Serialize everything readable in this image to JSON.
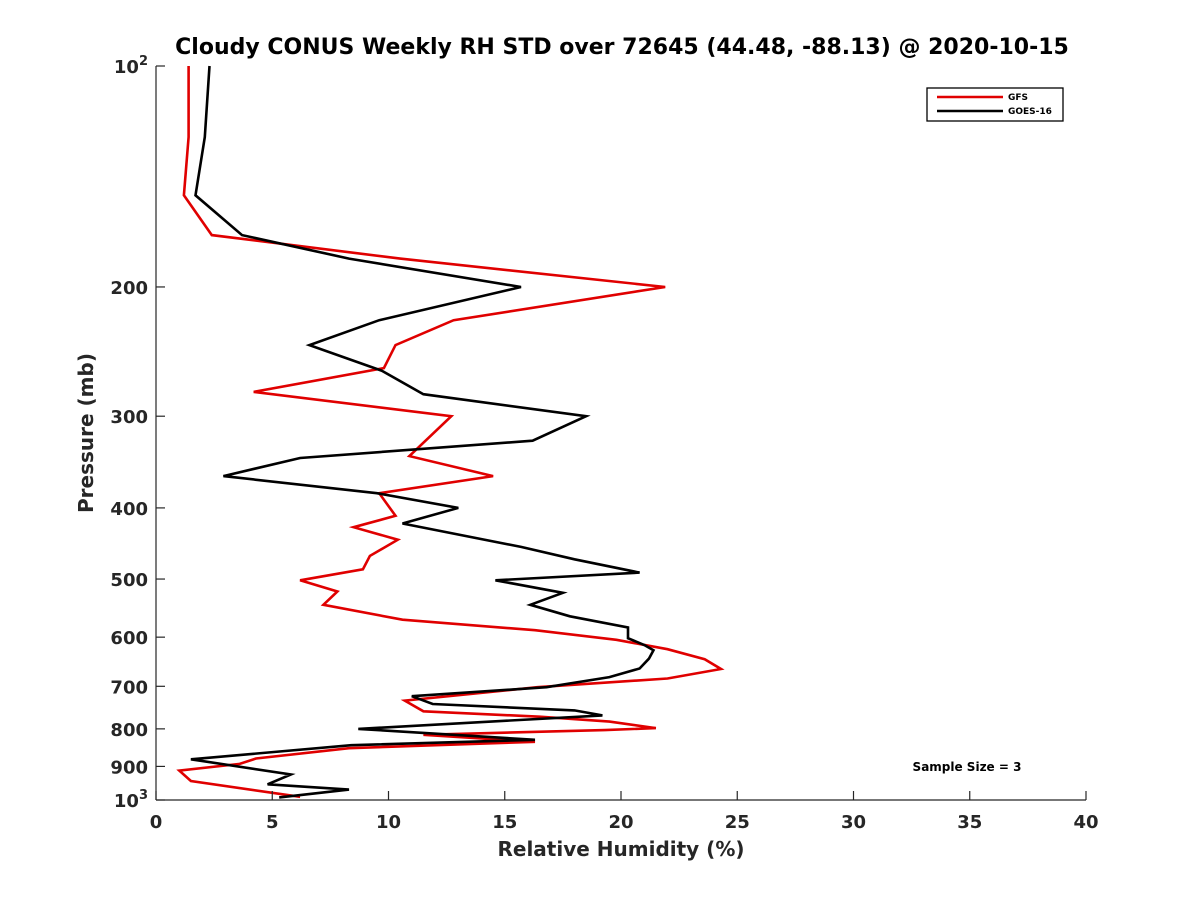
{
  "chart_data": {
    "type": "line",
    "title": "Cloudy CONUS Weekly RH STD over 72645 (44.48, -88.13) @ 2020-10-15",
    "xlabel": "Relative Humidity (%)",
    "ylabel": "Pressure (mb)",
    "xlim": [
      0,
      40
    ],
    "ylim": [
      100,
      1000
    ],
    "y_scale": "log",
    "y_reversed": true,
    "grid": false,
    "legend_position": "top-right",
    "x_ticks": [
      0,
      5,
      10,
      15,
      20,
      25,
      30,
      35,
      40
    ],
    "x_tick_labels": [
      "0",
      "5",
      "10",
      "15",
      "20",
      "25",
      "30",
      "35",
      "40"
    ],
    "y_ticks": [
      {
        "value": 100,
        "base": "10",
        "exp": "2"
      },
      {
        "value": 200,
        "label": "200"
      },
      {
        "value": 300,
        "label": "300"
      },
      {
        "value": 400,
        "label": "400"
      },
      {
        "value": 500,
        "label": "500"
      },
      {
        "value": 600,
        "label": "600"
      },
      {
        "value": 700,
        "label": "700"
      },
      {
        "value": 800,
        "label": "800"
      },
      {
        "value": 900,
        "label": "900"
      },
      {
        "value": 1000,
        "base": "10",
        "exp": "3"
      }
    ],
    "annotation": "Sample Size = 3",
    "series": [
      {
        "name": "GFS",
        "color": "#e00000",
        "points": [
          [
            1.4,
            100
          ],
          [
            1.4,
            125
          ],
          [
            1.2,
            150
          ],
          [
            2.4,
            170
          ],
          [
            10.5,
            183
          ],
          [
            21.9,
            200
          ],
          [
            12.8,
            222
          ],
          [
            10.3,
            240
          ],
          [
            9.8,
            258
          ],
          [
            4.2,
            278
          ],
          [
            12.7,
            300
          ],
          [
            10.9,
            340
          ],
          [
            14.5,
            362
          ],
          [
            9.6,
            382
          ],
          [
            10.3,
            410
          ],
          [
            8.5,
            425
          ],
          [
            10.4,
            442
          ],
          [
            9.2,
            465
          ],
          [
            8.9,
            485
          ],
          [
            6.2,
            502
          ],
          [
            7.8,
            520
          ],
          [
            7.2,
            542
          ],
          [
            10.6,
            568
          ],
          [
            16.3,
            587
          ],
          [
            19.8,
            605
          ],
          [
            22.0,
            623
          ],
          [
            23.6,
            643
          ],
          [
            24.3,
            663
          ],
          [
            22.0,
            683
          ],
          [
            16.4,
            702
          ],
          [
            10.7,
            732
          ],
          [
            11.5,
            757
          ],
          [
            16.5,
            770
          ],
          [
            19.5,
            782
          ],
          [
            21.5,
            798
          ],
          [
            19.3,
            803
          ],
          [
            11.5,
            815
          ],
          [
            16.3,
            833
          ],
          [
            8.3,
            850
          ],
          [
            4.3,
            878
          ],
          [
            3.6,
            893
          ],
          [
            1.0,
            912
          ],
          [
            1.5,
            942
          ],
          [
            6.2,
            990
          ]
        ]
      },
      {
        "name": "GOES-16",
        "color": "#000000",
        "points": [
          [
            2.3,
            100
          ],
          [
            2.1,
            125
          ],
          [
            1.7,
            150
          ],
          [
            3.7,
            170
          ],
          [
            8.3,
            183
          ],
          [
            15.7,
            200
          ],
          [
            9.6,
            222
          ],
          [
            6.6,
            240
          ],
          [
            9.7,
            260
          ],
          [
            11.5,
            280
          ],
          [
            18.5,
            300
          ],
          [
            16.2,
            324
          ],
          [
            6.2,
            342
          ],
          [
            2.9,
            362
          ],
          [
            9.5,
            382
          ],
          [
            13.0,
            400
          ],
          [
            10.6,
            420
          ],
          [
            15.7,
            452
          ],
          [
            18.0,
            470
          ],
          [
            20.8,
            490
          ],
          [
            14.6,
            502
          ],
          [
            17.5,
            522
          ],
          [
            16.1,
            542
          ],
          [
            17.8,
            562
          ],
          [
            20.3,
            582
          ],
          [
            20.3,
            602
          ],
          [
            21.0,
            615
          ],
          [
            21.4,
            625
          ],
          [
            21.2,
            642
          ],
          [
            20.8,
            662
          ],
          [
            19.5,
            680
          ],
          [
            16.8,
            702
          ],
          [
            11.0,
            722
          ],
          [
            11.9,
            740
          ],
          [
            18.0,
            755
          ],
          [
            19.2,
            767
          ],
          [
            8.7,
            800
          ],
          [
            16.3,
            828
          ],
          [
            8.4,
            842
          ],
          [
            1.5,
            880
          ],
          [
            5.8,
            923
          ],
          [
            4.8,
            952
          ],
          [
            8.3,
            968
          ],
          [
            5.3,
            992
          ]
        ]
      }
    ]
  }
}
